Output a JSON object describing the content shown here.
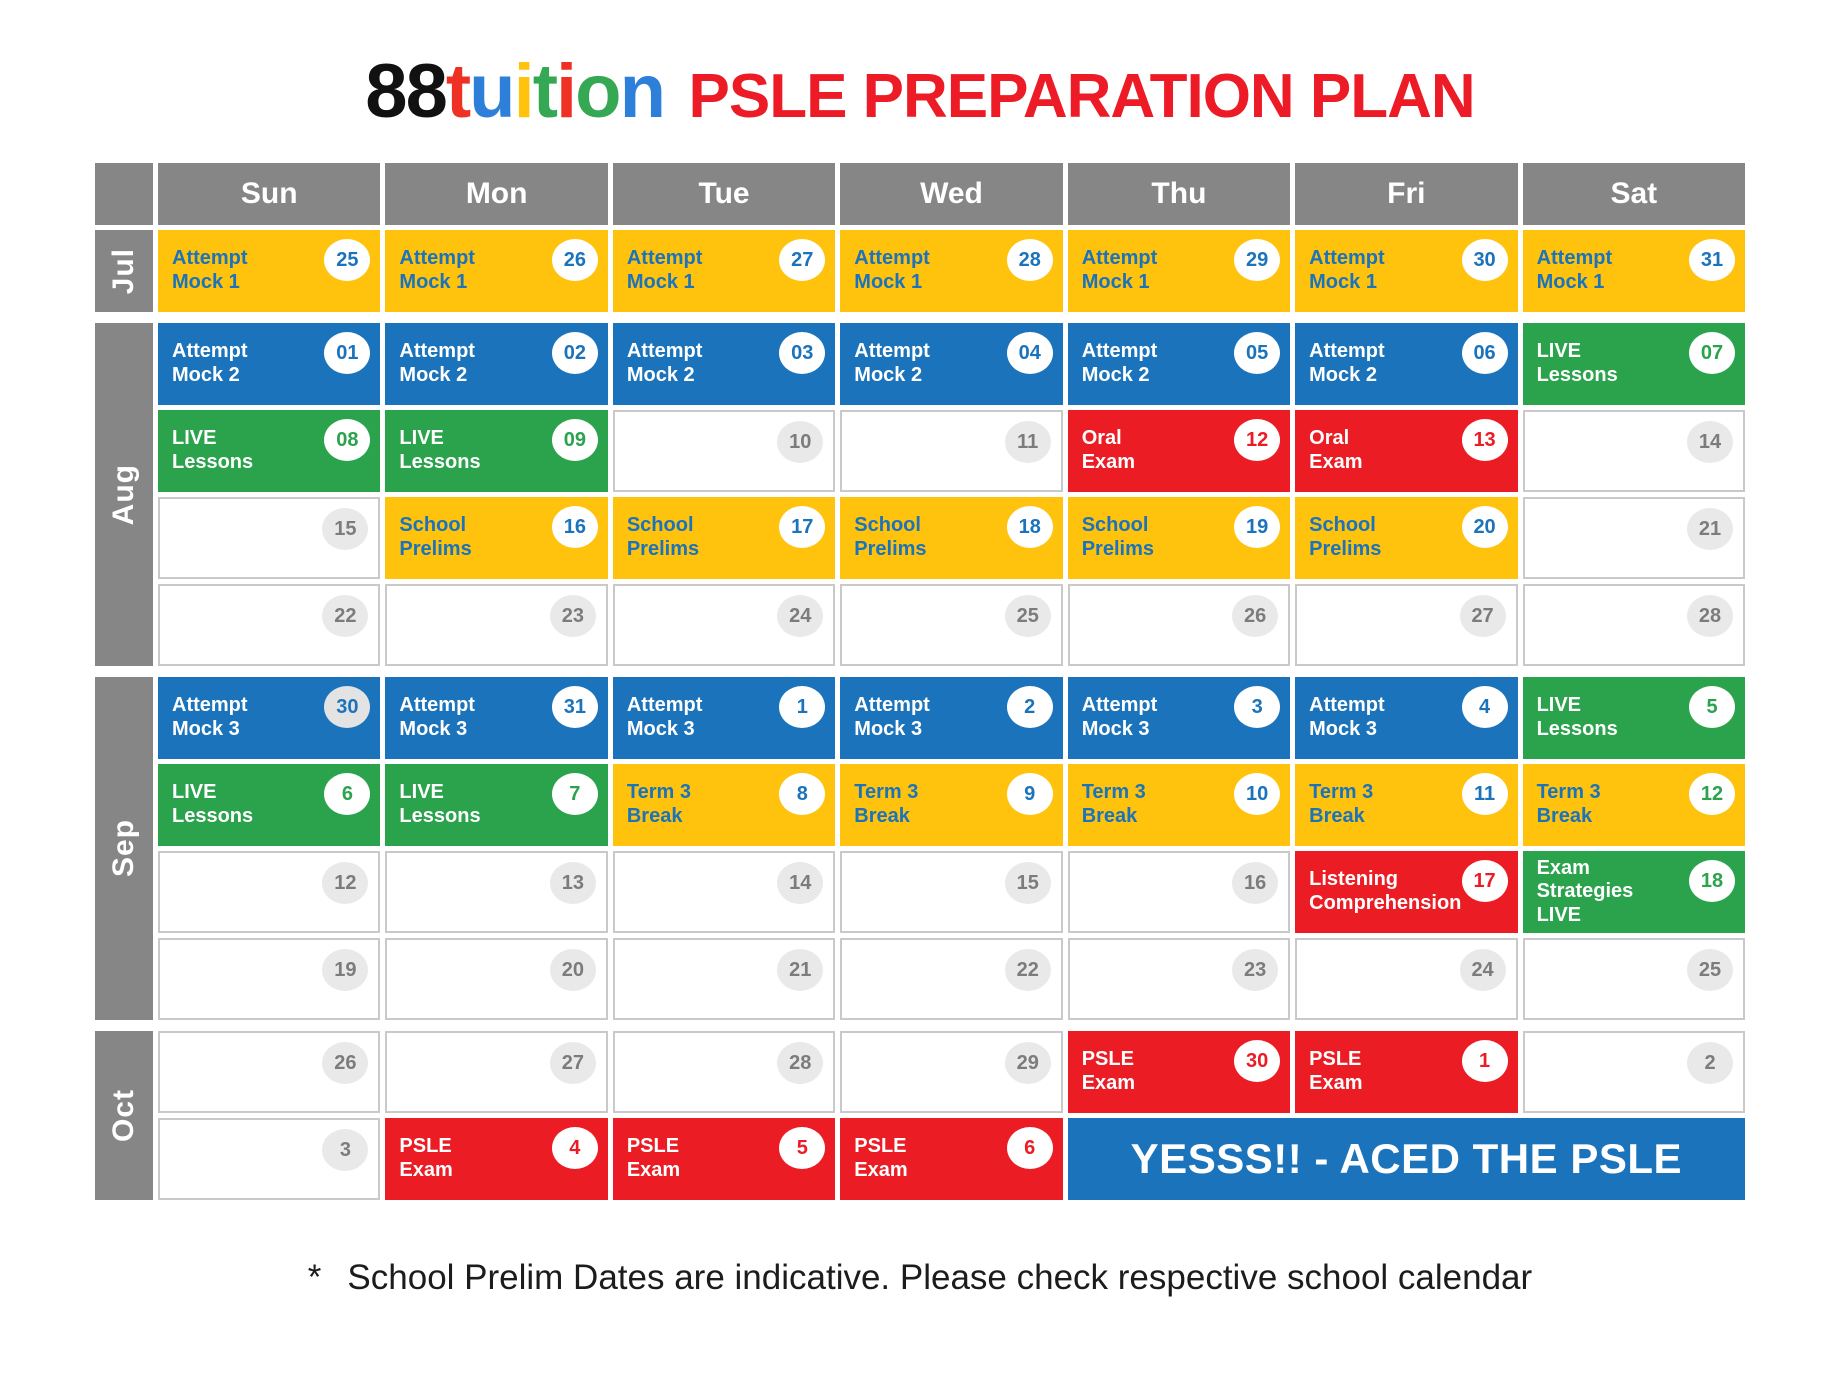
{
  "title": {
    "brand_prefix": "88",
    "letters": [
      {
        "ch": "t",
        "color": "#EE3124"
      },
      {
        "ch": "u",
        "color": "#2E7FD9"
      },
      {
        "ch": "i",
        "color": "#FFC20D"
      },
      {
        "ch": "t",
        "color": "#34A853"
      },
      {
        "ch": "i",
        "color": "#EE3124"
      },
      {
        "ch": "o",
        "color": "#34A853"
      },
      {
        "ch": "n",
        "color": "#2E7FD9"
      }
    ],
    "heading": "PSLE PREPARATION PLAN"
  },
  "palette": {
    "gray": "#868686",
    "yellow": "#FFC20D",
    "blue": "#1B73BB",
    "green": "#2AA34C",
    "red": "#EB1C24",
    "heading_red": "#EC1B26",
    "black": "#111111",
    "empty_border": "#C9C9C9",
    "empty_badge_bg": "#E9E9E9",
    "empty_badge_text": "#7C7C7C"
  },
  "day_headers": [
    "Sun",
    "Mon",
    "Tue",
    "Wed",
    "Thu",
    "Fri",
    "Sat"
  ],
  "banner": "YESSS!! - ACED THE PSLE",
  "footnote": {
    "mark": "*",
    "text": "School Prelim Dates are indicative. Please check respective school calendar"
  },
  "months": [
    {
      "label": "Jul",
      "weeks": [
        [
          {
            "day": "25",
            "text": "Attempt\nMock 1",
            "color": "yellow"
          },
          {
            "day": "26",
            "text": "Attempt\nMock 1",
            "color": "yellow"
          },
          {
            "day": "27",
            "text": "Attempt\nMock 1",
            "color": "yellow"
          },
          {
            "day": "28",
            "text": "Attempt\nMock 1",
            "color": "yellow"
          },
          {
            "day": "29",
            "text": "Attempt\nMock 1",
            "color": "yellow"
          },
          {
            "day": "30",
            "text": "Attempt\nMock 1",
            "color": "yellow"
          },
          {
            "day": "31",
            "text": "Attempt\nMock 1",
            "color": "yellow"
          }
        ]
      ]
    },
    {
      "label": "Aug",
      "weeks": [
        [
          {
            "day": "01",
            "text": "Attempt\nMock 2",
            "color": "blue"
          },
          {
            "day": "02",
            "text": "Attempt\nMock 2",
            "color": "blue"
          },
          {
            "day": "03",
            "text": "Attempt\nMock 2",
            "color": "blue"
          },
          {
            "day": "04",
            "text": "Attempt\nMock 2",
            "color": "blue"
          },
          {
            "day": "05",
            "text": "Attempt\nMock 2",
            "color": "blue"
          },
          {
            "day": "06",
            "text": "Attempt\nMock 2",
            "color": "blue"
          },
          {
            "day": "07",
            "text": "LIVE\nLessons",
            "color": "green"
          }
        ],
        [
          {
            "day": "08",
            "text": "LIVE\nLessons",
            "color": "green"
          },
          {
            "day": "09",
            "text": "LIVE\nLessons",
            "color": "green"
          },
          {
            "day": "10",
            "color": "empty"
          },
          {
            "day": "11",
            "color": "empty"
          },
          {
            "day": "12",
            "text": "Oral\nExam",
            "color": "red"
          },
          {
            "day": "13",
            "text": "Oral\nExam",
            "color": "red"
          },
          {
            "day": "14",
            "color": "empty"
          }
        ],
        [
          {
            "day": "15",
            "color": "empty"
          },
          {
            "day": "16",
            "text": "School\nPrelims",
            "color": "yellow"
          },
          {
            "day": "17",
            "text": "School\nPrelims",
            "color": "yellow"
          },
          {
            "day": "18",
            "text": "School\nPrelims",
            "color": "yellow"
          },
          {
            "day": "19",
            "text": "School\nPrelims",
            "color": "yellow"
          },
          {
            "day": "20",
            "text": "School\nPrelims",
            "color": "yellow"
          },
          {
            "day": "21",
            "color": "empty"
          }
        ],
        [
          {
            "day": "22",
            "color": "empty"
          },
          {
            "day": "23",
            "color": "empty"
          },
          {
            "day": "24",
            "color": "empty"
          },
          {
            "day": "25",
            "color": "empty"
          },
          {
            "day": "26",
            "color": "empty"
          },
          {
            "day": "27",
            "color": "empty"
          },
          {
            "day": "28",
            "color": "empty"
          }
        ]
      ]
    },
    {
      "label": "Sep",
      "weeks": [
        [
          {
            "day": "30",
            "text": "Attempt\nMock 3",
            "color": "blue",
            "badge_bg": "#E3E3E3"
          },
          {
            "day": "31",
            "text": "Attempt\nMock 3",
            "color": "blue"
          },
          {
            "day": "1",
            "text": "Attempt\nMock 3",
            "color": "blue"
          },
          {
            "day": "2",
            "text": "Attempt\nMock 3",
            "color": "blue"
          },
          {
            "day": "3",
            "text": "Attempt\nMock 3",
            "color": "blue"
          },
          {
            "day": "4",
            "text": "Attempt\nMock 3",
            "color": "blue"
          },
          {
            "day": "5",
            "text": "LIVE\nLessons",
            "color": "green"
          }
        ],
        [
          {
            "day": "6",
            "text": "LIVE\nLessons",
            "color": "green"
          },
          {
            "day": "7",
            "text": "LIVE\nLessons",
            "color": "green"
          },
          {
            "day": "8",
            "text": "Term 3\nBreak",
            "color": "yellow"
          },
          {
            "day": "9",
            "text": "Term 3\nBreak",
            "color": "yellow"
          },
          {
            "day": "10",
            "text": "Term 3\nBreak",
            "color": "yellow"
          },
          {
            "day": "11",
            "text": "Term 3\nBreak",
            "color": "yellow"
          },
          {
            "day": "12",
            "text": "Term 3\nBreak",
            "color": "yellow",
            "badge_color": "#2AA34C"
          }
        ],
        [
          {
            "day": "12",
            "color": "empty"
          },
          {
            "day": "13",
            "color": "empty"
          },
          {
            "day": "14",
            "color": "empty"
          },
          {
            "day": "15",
            "color": "empty"
          },
          {
            "day": "16",
            "color": "empty"
          },
          {
            "day": "17",
            "text": "Listening\nComprehension",
            "color": "red"
          },
          {
            "day": "18",
            "text": "Exam\nStrategies\nLIVE",
            "color": "green"
          }
        ],
        [
          {
            "day": "19",
            "color": "empty"
          },
          {
            "day": "20",
            "color": "empty"
          },
          {
            "day": "21",
            "color": "empty"
          },
          {
            "day": "22",
            "color": "empty"
          },
          {
            "day": "23",
            "color": "empty"
          },
          {
            "day": "24",
            "color": "empty"
          },
          {
            "day": "25",
            "color": "empty"
          }
        ]
      ]
    },
    {
      "label": "Oct",
      "weeks": [
        [
          {
            "day": "26",
            "color": "empty"
          },
          {
            "day": "27",
            "color": "empty"
          },
          {
            "day": "28",
            "color": "empty"
          },
          {
            "day": "29",
            "color": "empty"
          },
          {
            "day": "30",
            "text": "PSLE\nExam",
            "color": "red"
          },
          {
            "day": "1",
            "text": "PSLE\nExam",
            "color": "red"
          },
          {
            "day": "2",
            "color": "empty"
          }
        ],
        [
          {
            "day": "3",
            "color": "empty"
          },
          {
            "day": "4",
            "text": "PSLE\nExam",
            "color": "red"
          },
          {
            "day": "5",
            "text": "PSLE\nExam",
            "color": "red"
          },
          {
            "day": "6",
            "text": "PSLE\nExam",
            "color": "red"
          },
          {
            "banner": true,
            "span": 3
          }
        ]
      ]
    }
  ]
}
